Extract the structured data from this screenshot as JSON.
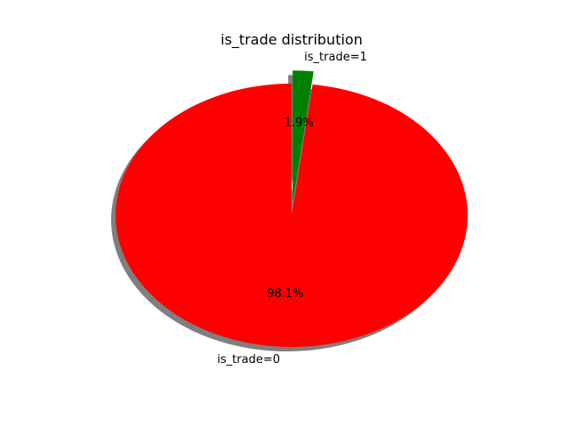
{
  "chart_data": {
    "type": "pie",
    "title": "is_trade distribution",
    "slices": [
      {
        "label": "is_trade=0",
        "value": 98.1,
        "pct_label": "98.1%",
        "color": "#ff0000",
        "exploded": false
      },
      {
        "label": "is_trade=1",
        "value": 1.9,
        "pct_label": "1.9%",
        "color": "#008000",
        "exploded": true
      }
    ],
    "shadow": true,
    "legend": "none"
  }
}
